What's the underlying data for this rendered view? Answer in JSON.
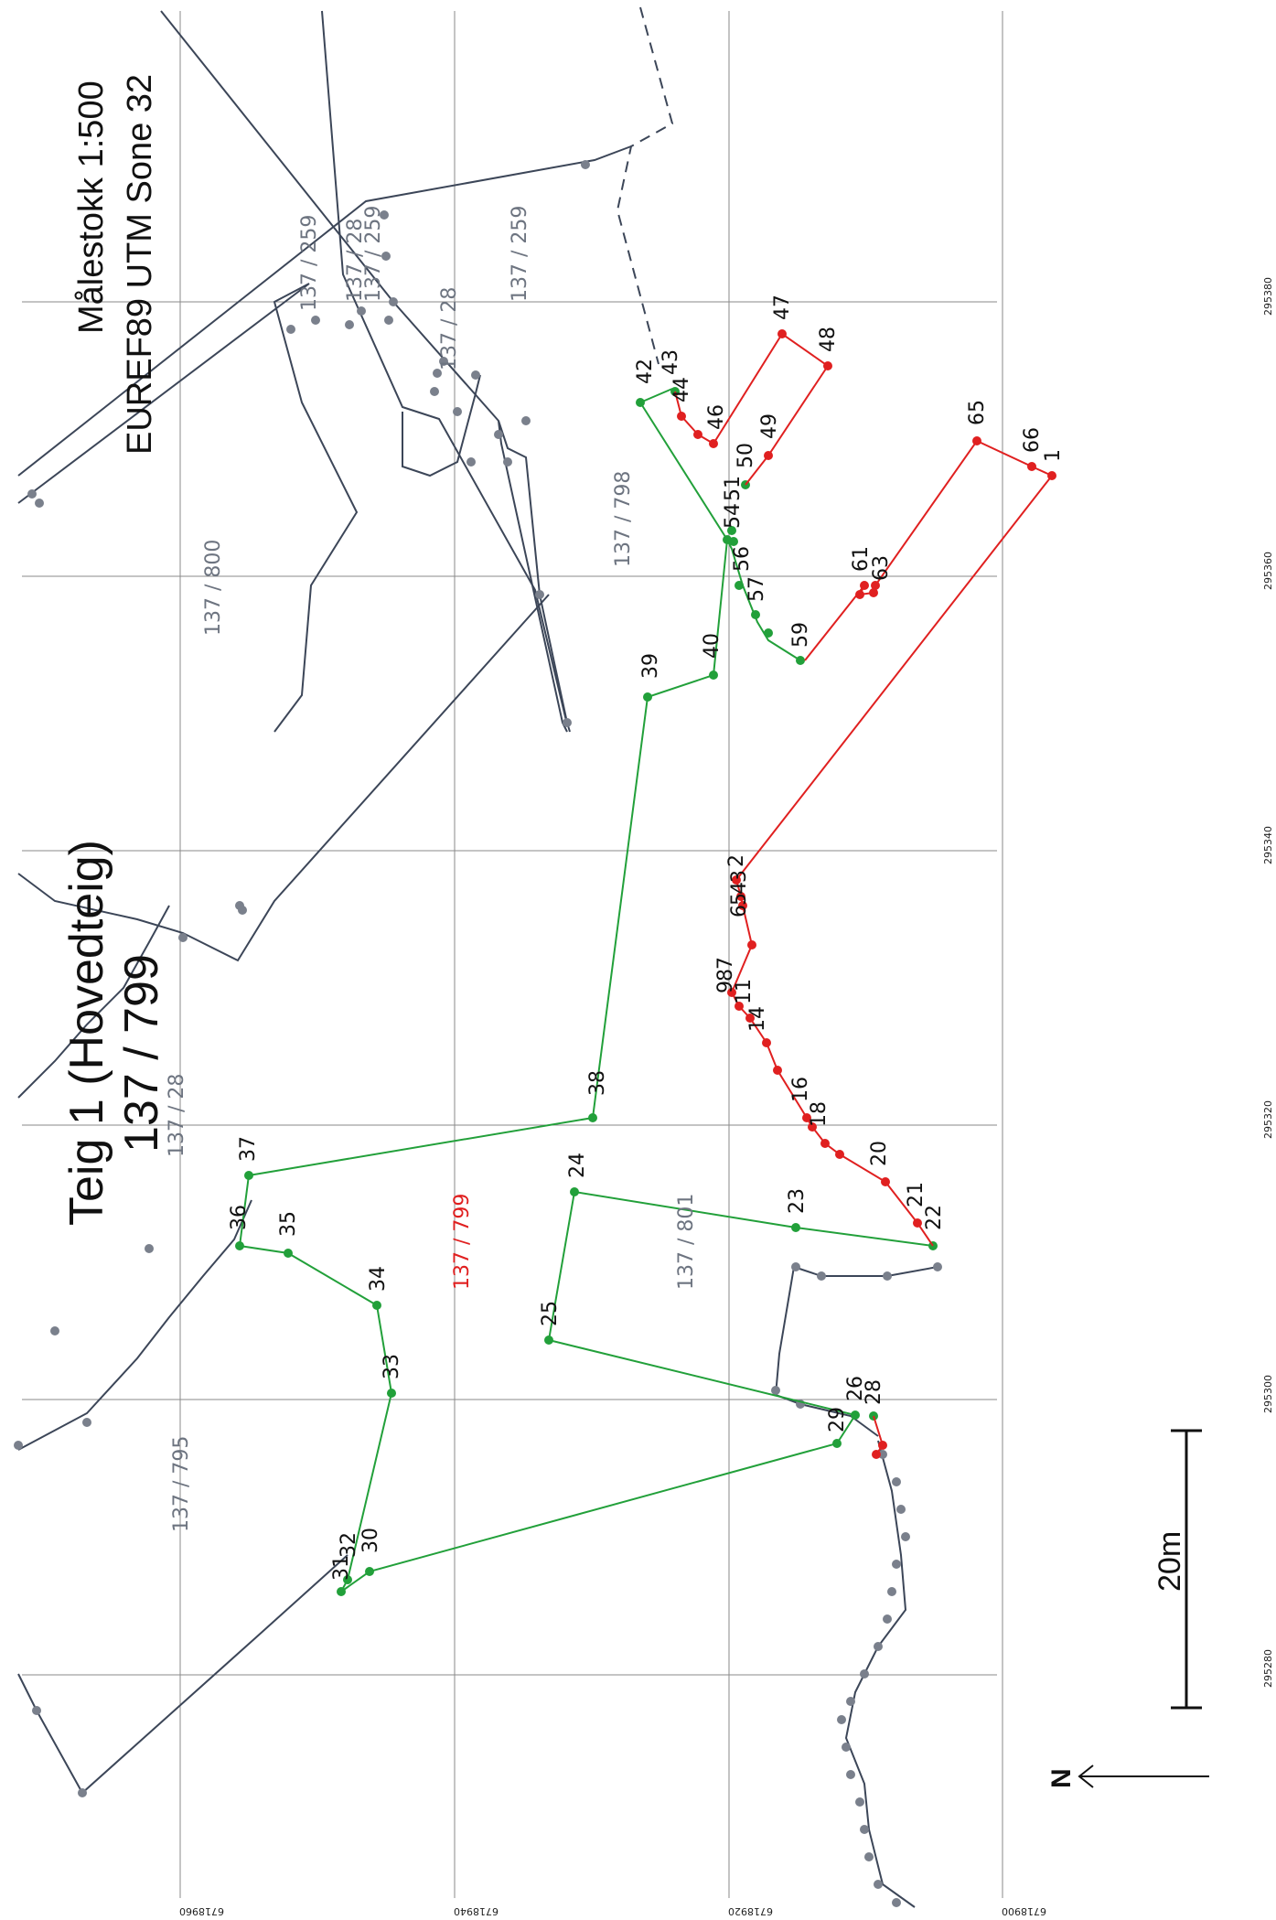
{
  "map": {
    "title_line1": "Teig 1 (Hovedteig)",
    "title_line2": "137 / 799",
    "scale_text": "Målestokk 1:500",
    "projection_text": "EUREF89 UTM Sone 32",
    "scalebar_label": "20m",
    "north_label": "N",
    "colors": {
      "green": "#22a03a",
      "red": "#e02020",
      "gray_line": "#3c4658",
      "gray_dot": "#7a808c",
      "grid": "#8a8a8a"
    }
  },
  "grid_labels": {
    "easting": [
      "295280",
      "295300",
      "295320",
      "295340",
      "295360",
      "295380"
    ],
    "northing": [
      "6718960",
      "6718940",
      "6718920",
      "6718900"
    ]
  },
  "property_labels": [
    {
      "text": "137 / 259",
      "color": "gray"
    },
    {
      "text": "137 / 28",
      "color": "gray"
    },
    {
      "text": "137 / 259",
      "color": "gray"
    },
    {
      "text": "137 / 28",
      "color": "gray"
    },
    {
      "text": "137 / 259",
      "color": "gray"
    },
    {
      "text": "137 / 800",
      "color": "gray"
    },
    {
      "text": "137 / 798",
      "color": "gray"
    },
    {
      "text": "137 / 28",
      "color": "gray"
    },
    {
      "text": "137 / 799",
      "color": "red"
    },
    {
      "text": "137 / 801",
      "color": "gray"
    },
    {
      "text": "137 / 795",
      "color": "gray"
    }
  ],
  "point_labels": {
    "green": [
      "42",
      "39",
      "40",
      "38",
      "37",
      "36",
      "35",
      "34",
      "33",
      "32",
      "31",
      "30",
      "29",
      "28",
      "26",
      "25",
      "24",
      "23",
      "22",
      "50",
      "51",
      "54",
      "56",
      "57",
      "59"
    ],
    "red": [
      "43",
      "44",
      "46",
      "47",
      "48",
      "49",
      "65",
      "66",
      "1",
      "61",
      "63",
      "2",
      "3",
      "4",
      "5",
      "6",
      "7",
      "8",
      "9",
      "11",
      "14",
      "16",
      "18",
      "20",
      "21"
    ]
  }
}
